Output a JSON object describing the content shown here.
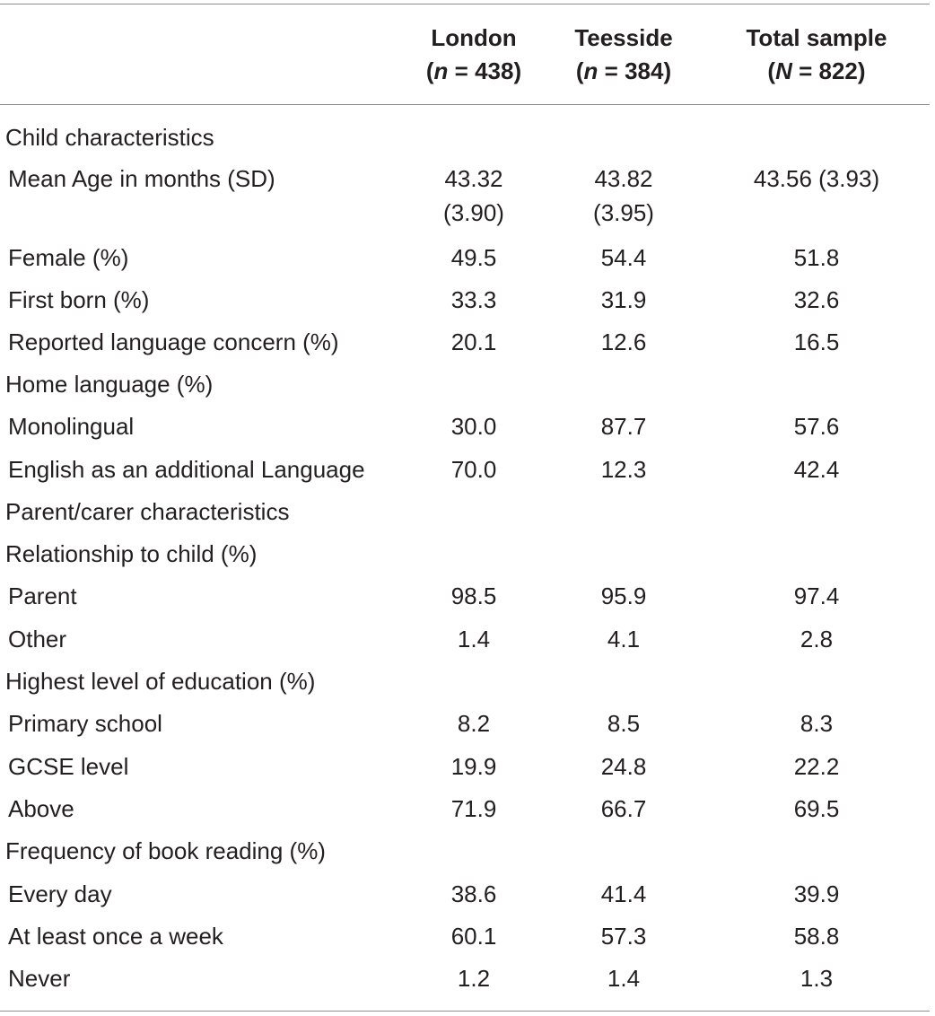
{
  "table": {
    "columns": [
      {
        "name": "London",
        "n_label": "n",
        "n_value": "= 438)"
      },
      {
        "name": "Teesside",
        "n_label": "n",
        "n_value": "= 384)"
      },
      {
        "name": "Total sample",
        "n_label": "N",
        "n_value": "= 822)"
      }
    ],
    "rows": [
      {
        "label": "Child characteristics",
        "type": "section"
      },
      {
        "label": "Mean Age in months (SD)",
        "type": "item",
        "values": [
          "43.32",
          "43.82",
          "43.56 (3.93)"
        ],
        "values2": [
          "(3.90)",
          "(3.95)",
          ""
        ]
      },
      {
        "label": "Female (%)",
        "type": "item",
        "values": [
          "49.5",
          "54.4",
          "51.8"
        ]
      },
      {
        "label": "First born (%)",
        "type": "item",
        "values": [
          "33.3",
          "31.9",
          "32.6"
        ]
      },
      {
        "label": "Reported language concern (%)",
        "type": "item",
        "values": [
          "20.1",
          "12.6",
          "16.5"
        ]
      },
      {
        "label": "Home language (%)",
        "type": "section"
      },
      {
        "label": "Monolingual",
        "type": "item",
        "values": [
          "30.0",
          "87.7",
          "57.6"
        ]
      },
      {
        "label": "English as an additional Language",
        "type": "item",
        "values": [
          "70.0",
          "12.3",
          "42.4"
        ]
      },
      {
        "label": "Parent/carer characteristics",
        "type": "section"
      },
      {
        "label": "Relationship to child (%)",
        "type": "section"
      },
      {
        "label": "Parent",
        "type": "item",
        "values": [
          "98.5",
          "95.9",
          "97.4"
        ]
      },
      {
        "label": "Other",
        "type": "item",
        "values": [
          "1.4",
          "4.1",
          "2.8"
        ]
      },
      {
        "label": "Highest level of education (%)",
        "type": "section"
      },
      {
        "label": "Primary school",
        "type": "item",
        "values": [
          "8.2",
          "8.5",
          "8.3"
        ]
      },
      {
        "label": "GCSE level",
        "type": "item",
        "values": [
          "19.9",
          "24.8",
          "22.2"
        ]
      },
      {
        "label": "Above",
        "type": "item",
        "values": [
          "71.9",
          "66.7",
          "69.5"
        ]
      },
      {
        "label": "Frequency of book reading (%)",
        "type": "section"
      },
      {
        "label": "Every day",
        "type": "item",
        "values": [
          "38.6",
          "41.4",
          "39.9"
        ]
      },
      {
        "label": "At least once a week",
        "type": "item",
        "values": [
          "60.1",
          "57.3",
          "58.8"
        ]
      },
      {
        "label": "Never",
        "type": "item",
        "values": [
          "1.2",
          "1.4",
          "1.3"
        ]
      }
    ]
  }
}
